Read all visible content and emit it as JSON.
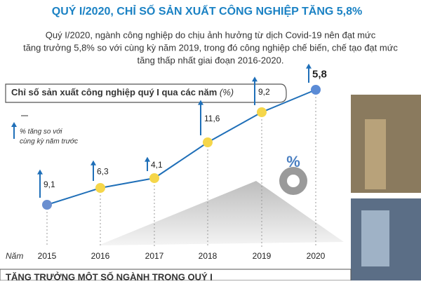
{
  "header": {
    "title": "QUÝ I/2020, CHỈ SỐ SẢN XUẤT CÔNG NGHIỆP TĂNG 5,8%",
    "lines": [
      "Quý I/2020, ngành công nghiệp do chịu ảnh hưởng từ dịch Covid-19 nên đạt mức",
      "tăng trưởng 5,8% so với cùng kỳ năm 2019, trong đó công nghiệp chế biến, chế tạo đạt mức",
      "tăng thấp nhất giai đoạn 2016-2020."
    ]
  },
  "chart_data": {
    "type": "line",
    "title": "Chỉ số sản xuất công nghiệp quý I qua các năm",
    "unit": "(%)",
    "legend": [
      "% tăng so với",
      "cùng kỳ năm trước"
    ],
    "x_label": "Năm",
    "categories": [
      "2015",
      "2016",
      "2017",
      "2018",
      "2019",
      "2020"
    ],
    "values": [
      9.1,
      6.3,
      4.1,
      11.6,
      9.2,
      5.8
    ],
    "value_labels": [
      "9,1",
      "6,3",
      "4,1",
      "11,6",
      "9,2",
      "5,8"
    ],
    "color": "#1f6fb8"
  },
  "footer": {
    "section_title": "TĂNG TRƯỞNG MỘT SỐ NGÀNH TRONG QUÝ I"
  }
}
